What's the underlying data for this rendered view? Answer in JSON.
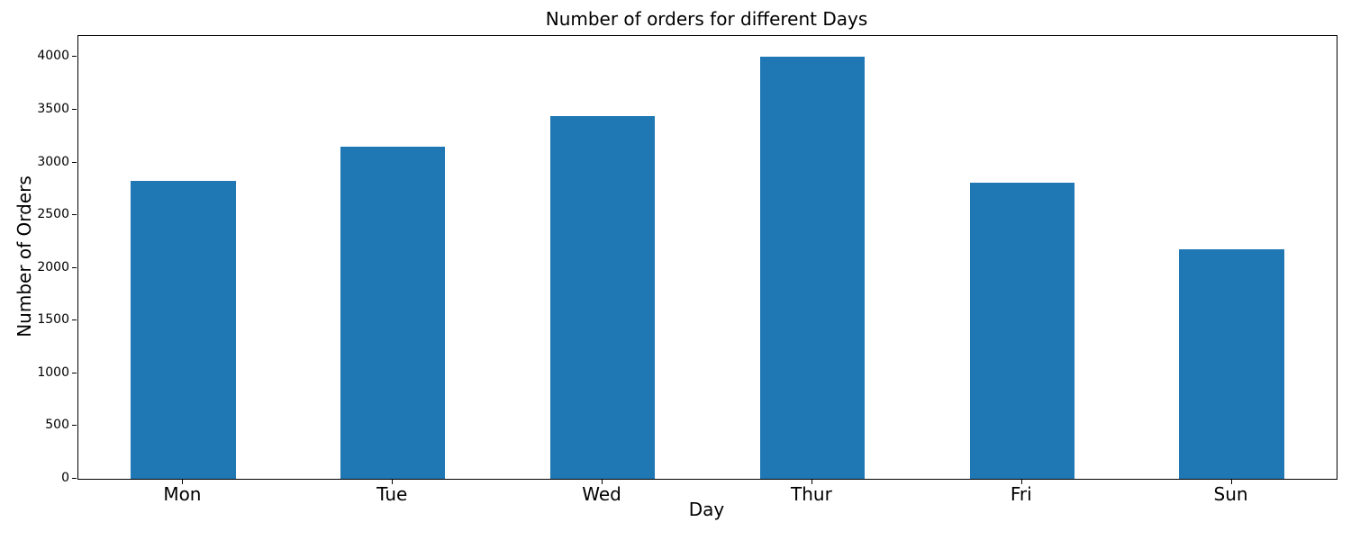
{
  "chart_data": {
    "type": "bar",
    "title": "Number of orders for different Days",
    "xlabel": "Day",
    "ylabel": "Number of Orders",
    "categories": [
      "Mon",
      "Tue",
      "Wed",
      "Thur",
      "Fri",
      "Sun"
    ],
    "values": [
      2830,
      3150,
      3440,
      4000,
      2810,
      2180
    ],
    "yticks": [
      0,
      500,
      1000,
      1500,
      2000,
      2500,
      3000,
      3500,
      4000
    ],
    "ylim": [
      0,
      4200
    ],
    "bar_color": "#1f77b4",
    "spine_color": "#000000",
    "grid": false,
    "legend": "none",
    "bar_relative_width": 0.5
  }
}
